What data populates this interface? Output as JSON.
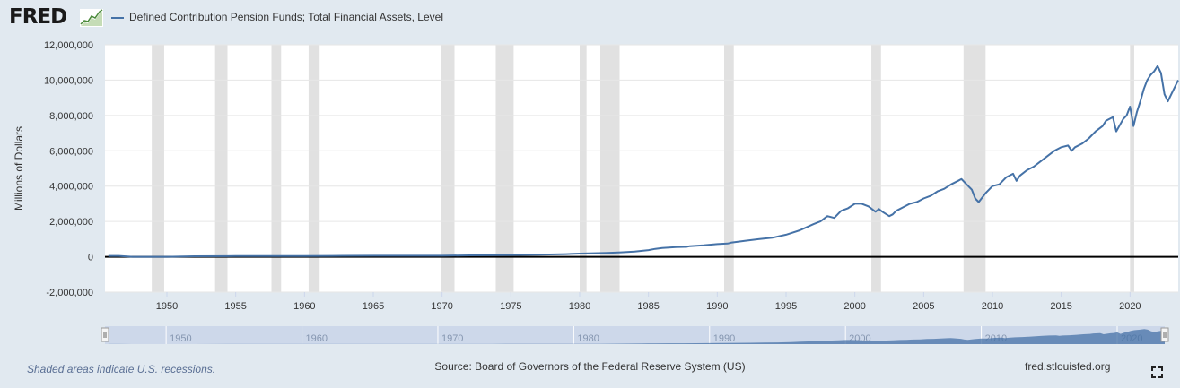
{
  "logo": {
    "text": "FRED"
  },
  "legend": {
    "label": "Defined Contribution Pension Funds; Total Financial Assets, Level"
  },
  "footer": {
    "note": "Shaded areas indicate U.S. recessions.",
    "source": "Source: Board of Governors of the Federal Reserve System (US)",
    "site": "fred.stlouisfed.org"
  },
  "colors": {
    "series": "#4572a7",
    "recession": "#e1e1e1",
    "background": "#e1e9f0",
    "plot": "#ffffff",
    "zero_line": "#000000"
  },
  "chart_data": {
    "type": "line",
    "title": "",
    "xlabel": "",
    "ylabel": "Millions of Dollars",
    "xlim": [
      1945.5,
      2023.5
    ],
    "ylim": [
      -2000000,
      12000000
    ],
    "y_ticks": [
      12000000,
      10000000,
      8000000,
      6000000,
      4000000,
      2000000,
      0,
      -2000000
    ],
    "y_tick_labels": [
      "12,000,000",
      "10,000,000",
      "8,000,000",
      "6,000,000",
      "4,000,000",
      "2,000,000",
      "0",
      "-2,000,000"
    ],
    "x_ticks": [
      1950,
      1955,
      1960,
      1965,
      1970,
      1975,
      1980,
      1985,
      1990,
      1995,
      2000,
      2005,
      2010,
      2015,
      2020
    ],
    "navigator_ticks": [
      1950,
      1960,
      1970,
      1980,
      1990,
      2000,
      2010,
      2020
    ],
    "grid": true,
    "legend_position": "top-left",
    "recessions": [
      [
        1948.9,
        1949.8
      ],
      [
        1953.5,
        1954.4
      ],
      [
        1957.6,
        1958.3
      ],
      [
        1960.3,
        1961.1
      ],
      [
        1969.9,
        1970.9
      ],
      [
        1973.9,
        1975.2
      ],
      [
        1980.0,
        1980.5
      ],
      [
        1981.5,
        1982.9
      ],
      [
        1990.5,
        1991.2
      ],
      [
        2001.2,
        2001.9
      ],
      [
        2007.9,
        2009.5
      ],
      [
        2020.0,
        2020.3
      ]
    ],
    "series": [
      {
        "name": "Defined Contribution Pension Funds; Total Financial Assets, Level",
        "x": [
          1945.75,
          1946.5,
          1947.5,
          1948.5,
          1950,
          1952,
          1955,
          1958,
          1960,
          1962,
          1965,
          1968,
          1970,
          1972,
          1974,
          1975,
          1977,
          1979,
          1980,
          1981,
          1982,
          1983,
          1984,
          1985,
          1985.5,
          1986,
          1987,
          1987.75,
          1988,
          1989,
          1990,
          1990.75,
          1991,
          1992,
          1993,
          1994,
          1995,
          1996,
          1997,
          1997.5,
          1998,
          1998.5,
          1999,
          1999.5,
          2000,
          2000.5,
          2001,
          2001.5,
          2001.75,
          2002,
          2002.5,
          2002.75,
          2003,
          2003.5,
          2004,
          2004.5,
          2005,
          2005.5,
          2006,
          2006.5,
          2007,
          2007.5,
          2007.75,
          2008,
          2008.5,
          2008.75,
          2009,
          2009.5,
          2010,
          2010.5,
          2011,
          2011.5,
          2011.75,
          2012,
          2012.5,
          2013,
          2013.5,
          2014,
          2014.5,
          2015,
          2015.5,
          2015.75,
          2016,
          2016.5,
          2017,
          2017.5,
          2018,
          2018.25,
          2018.75,
          2019,
          2019.5,
          2019.75,
          2020,
          2020.25,
          2020.5,
          2020.75,
          2021,
          2021.25,
          2021.5,
          2021.75,
          2022,
          2022.25,
          2022.5,
          2022.75,
          2023,
          2023.5
        ],
        "y": [
          50000,
          50000,
          0,
          0,
          0,
          30000,
          40000,
          40000,
          40000,
          50000,
          60000,
          60000,
          60000,
          80000,
          90000,
          100000,
          120000,
          150000,
          180000,
          200000,
          220000,
          250000,
          300000,
          380000,
          450000,
          500000,
          550000,
          560000,
          600000,
          650000,
          720000,
          750000,
          800000,
          900000,
          1000000,
          1080000,
          1250000,
          1500000,
          1850000,
          2000000,
          2300000,
          2200000,
          2600000,
          2750000,
          3000000,
          3000000,
          2850000,
          2550000,
          2700000,
          2550000,
          2300000,
          2400000,
          2600000,
          2800000,
          3000000,
          3100000,
          3300000,
          3450000,
          3700000,
          3850000,
          4100000,
          4300000,
          4400000,
          4200000,
          3800000,
          3300000,
          3100000,
          3600000,
          4000000,
          4100000,
          4500000,
          4700000,
          4300000,
          4600000,
          4900000,
          5100000,
          5400000,
          5700000,
          6000000,
          6200000,
          6300000,
          6000000,
          6200000,
          6400000,
          6700000,
          7100000,
          7400000,
          7700000,
          7900000,
          7100000,
          7800000,
          8000000,
          8500000,
          7400000,
          8200000,
          8800000,
          9500000,
          10000000,
          10300000,
          10500000,
          10800000,
          10400000,
          9200000,
          8800000,
          9200000,
          10000000
        ]
      }
    ]
  }
}
